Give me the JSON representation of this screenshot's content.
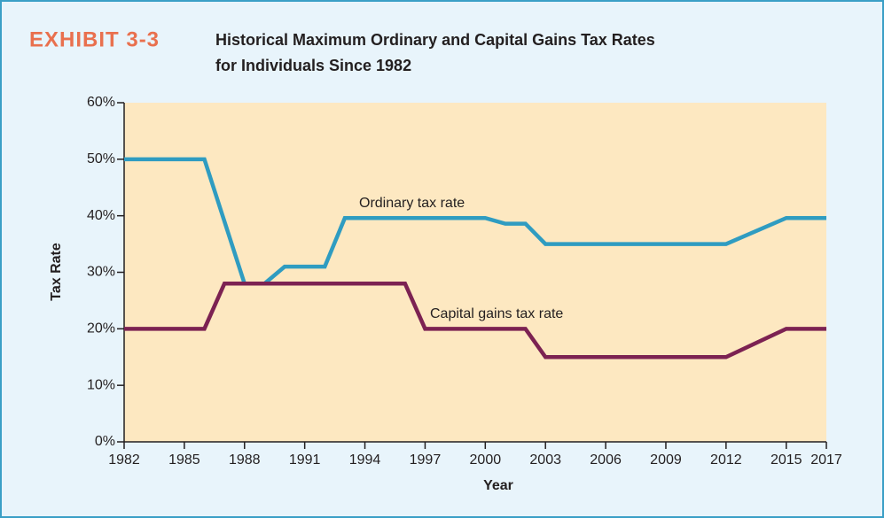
{
  "chart_data": {
    "type": "line",
    "exhibit": "EXHIBIT 3-3",
    "title_lines": [
      "Historical Maximum Ordinary and Capital Gains Tax Rates",
      "for Individuals Since 1982"
    ],
    "y_label": "Tax Rate",
    "x_label": "Year",
    "xlim": [
      1982,
      2017
    ],
    "xticks": [
      1982,
      1985,
      1988,
      1991,
      1994,
      1997,
      2000,
      2003,
      2006,
      2009,
      2012,
      2015,
      2017
    ],
    "ylim": [
      0,
      60
    ],
    "yticks": [
      {
        "value": 0,
        "label": "0%"
      },
      {
        "value": 10,
        "label": "10%"
      },
      {
        "value": 20,
        "label": "20%"
      },
      {
        "value": 30,
        "label": "30%"
      },
      {
        "value": 40,
        "label": "40%"
      },
      {
        "value": 50,
        "label": "50%"
      },
      {
        "value": 60,
        "label": "60%"
      }
    ],
    "grid": false,
    "series": [
      {
        "name": "Ordinary tax rate",
        "color": "#2f9cc1",
        "x": [
          1982,
          1986,
          1988,
          1989,
          1990,
          1992,
          1993,
          2000,
          2001,
          2002,
          2003,
          2012,
          2015,
          2017
        ],
        "values": [
          50,
          50,
          28,
          28,
          31,
          31,
          39.6,
          39.6,
          38.6,
          38.6,
          35,
          35,
          39.6,
          39.6
        ]
      },
      {
        "name": "Capital gains tax rate",
        "color": "#7c2252",
        "x": [
          1982,
          1986,
          1987,
          1996,
          1997,
          2002,
          2003,
          2012,
          2015,
          2017
        ],
        "values": [
          20,
          20,
          28,
          28,
          20,
          20,
          15,
          15,
          20,
          20
        ]
      }
    ]
  }
}
